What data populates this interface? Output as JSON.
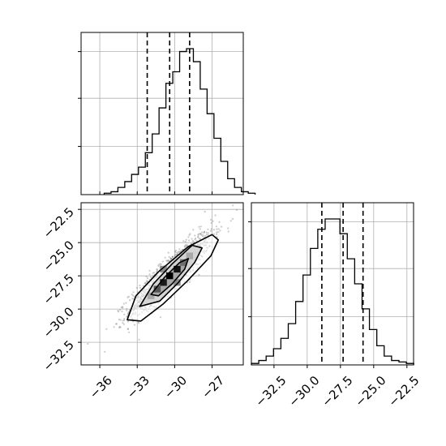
{
  "chart_data": [
    {
      "type": "histogram",
      "panel": "top-left marginal (parameter 1)",
      "xlim": [
        -37.5,
        -24.5
      ],
      "x_ticks": [
        -36,
        -33,
        -30,
        -27
      ],
      "y_tick_labels_shown": false,
      "bin_edges_start": -35.65,
      "bin_width": 0.55,
      "counts": [
        1,
        2,
        5,
        9,
        14,
        19,
        29,
        42,
        60,
        77,
        85,
        99,
        101,
        92,
        73,
        56,
        39,
        23,
        11,
        5,
        2,
        1
      ],
      "quantile_lines": [
        -32.2,
        -30.4,
        -28.8
      ],
      "ylim": [
        0,
        101
      ],
      "grid": true
    },
    {
      "type": "scatter",
      "panel": "bottom-left 2D density (parameter 1 vs parameter 2)",
      "xlim": [
        -37.5,
        -24.5
      ],
      "ylim": [
        -34.2,
        -22.0
      ],
      "x_ticks": [
        -36,
        -33,
        -30,
        -27
      ],
      "x_tick_labels": [
        "−36",
        "−33",
        "−30",
        "−27"
      ],
      "y_ticks": [
        -32.5,
        -30.0,
        -27.5,
        -25.0,
        -22.5
      ],
      "y_tick_labels": [
        "−32.5",
        "−30.0",
        "−27.5",
        "−25.0",
        "−22.5"
      ],
      "center": [
        -30.3,
        -27.3
      ],
      "contours": [
        {
          "level": "outer",
          "points": [
            [
              -33.8,
              -30.8
            ],
            [
              -33.1,
              -29.0
            ],
            [
              -31.3,
              -27.2
            ],
            [
              -28.9,
              -25.3
            ],
            [
              -27.0,
              -24.4
            ],
            [
              -26.5,
              -24.8
            ],
            [
              -27.1,
              -26.0
            ],
            [
              -29.0,
              -27.9
            ],
            [
              -30.9,
              -29.6
            ],
            [
              -32.7,
              -30.9
            ]
          ]
        },
        {
          "level": "middle",
          "points": [
            [
              -32.8,
              -29.8
            ],
            [
              -31.7,
              -28.1
            ],
            [
              -30.2,
              -26.6
            ],
            [
              -28.6,
              -25.2
            ],
            [
              -27.8,
              -25.4
            ],
            [
              -28.4,
              -26.5
            ],
            [
              -29.7,
              -28.0
            ],
            [
              -31.2,
              -29.4
            ]
          ]
        },
        {
          "level": "inner",
          "points": [
            [
              -31.9,
              -28.9
            ],
            [
              -30.8,
              -27.6
            ],
            [
              -29.6,
              -26.5
            ],
            [
              -28.9,
              -26.2
            ],
            [
              -29.2,
              -27.0
            ],
            [
              -30.2,
              -28.1
            ],
            [
              -31.3,
              -29.0
            ]
          ]
        }
      ],
      "density_cells": [
        {
          "x": -30.9,
          "y": -28.0,
          "shade": "#1a1a1a"
        },
        {
          "x": -30.4,
          "y": -27.5,
          "shade": "#000000"
        },
        {
          "x": -29.8,
          "y": -27.0,
          "shade": "#111111"
        },
        {
          "x": -31.4,
          "y": -28.5,
          "shade": "#555555"
        },
        {
          "x": -29.3,
          "y": -26.5,
          "shade": "#6e6e6e"
        },
        {
          "x": -30.9,
          "y": -27.0,
          "shade": "#8a8a8a"
        },
        {
          "x": -29.8,
          "y": -28.0,
          "shade": "#8a8a8a"
        },
        {
          "x": -28.8,
          "y": -26.0,
          "shade": "#a8a8a8"
        },
        {
          "x": -31.9,
          "y": -29.0,
          "shade": "#a8a8a8"
        }
      ],
      "grid": true
    },
    {
      "type": "histogram",
      "panel": "bottom-right marginal (parameter 2)",
      "xlim": [
        -34.2,
        -22.0
      ],
      "x_ticks": [
        -32.5,
        -30.0,
        -27.5,
        -25.0,
        -22.5
      ],
      "x_tick_labels": [
        "−32.5",
        "−30.0",
        "−27.5",
        "−25.0",
        "−22.5"
      ],
      "y_tick_labels_shown": false,
      "bin_edges_start": -34.2,
      "bin_width": 0.555,
      "counts": [
        1,
        3,
        6,
        11,
        18,
        28,
        43,
        61,
        79,
        92,
        99,
        99,
        89,
        72,
        55,
        38,
        24,
        13,
        6,
        3,
        2,
        1
      ],
      "quantile_lines": [
        -28.9,
        -27.3,
        -25.8
      ],
      "ylim": [
        0,
        99
      ],
      "grid": true
    }
  ]
}
